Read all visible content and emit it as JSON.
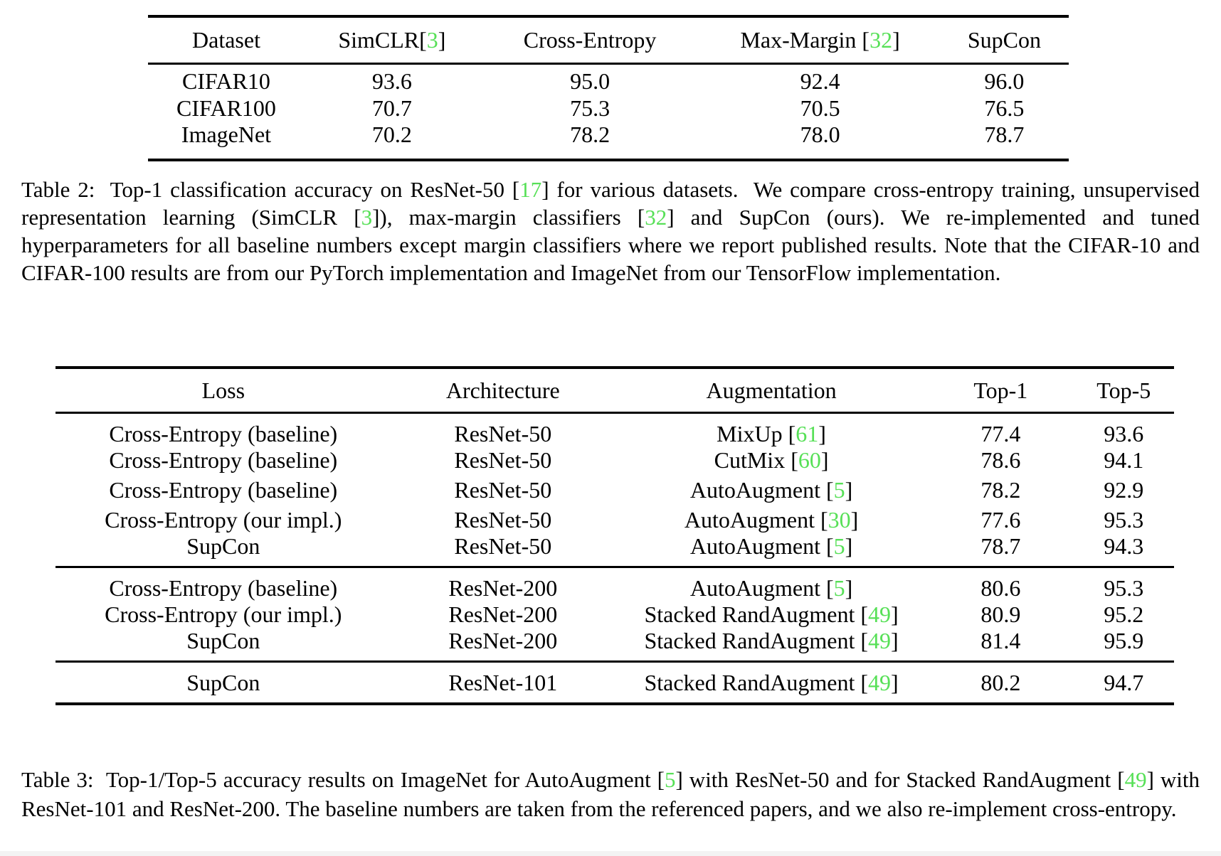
{
  "colors": {
    "cite_green": "#57e057",
    "text": "#000000",
    "background": "#ffffff",
    "rule": "#000000"
  },
  "table2": {
    "headers": [
      {
        "segments": [
          {
            "t": "Dataset"
          }
        ]
      },
      {
        "segments": [
          {
            "t": "SimCLR["
          },
          {
            "cite": "3"
          },
          {
            "t": "]"
          }
        ]
      },
      {
        "segments": [
          {
            "t": "Cross-Entropy"
          }
        ]
      },
      {
        "segments": [
          {
            "t": "Max-Margin ["
          },
          {
            "cite": "32"
          },
          {
            "t": "]"
          }
        ]
      },
      {
        "segments": [
          {
            "t": "SupCon"
          }
        ]
      }
    ],
    "groups": [
      {
        "rows": [
          {
            "cells": [
              {
                "segments": [
                  {
                    "t": "CIFAR10"
                  }
                ]
              },
              {
                "segments": [
                  {
                    "t": "93.6"
                  }
                ]
              },
              {
                "segments": [
                  {
                    "t": "95.0"
                  }
                ]
              },
              {
                "segments": [
                  {
                    "t": "92.4"
                  }
                ]
              },
              {
                "segments": [
                  {
                    "t": "96.0"
                  }
                ],
                "bold": true
              }
            ]
          },
          {
            "cells": [
              {
                "segments": [
                  {
                    "t": "CIFAR100"
                  }
                ]
              },
              {
                "segments": [
                  {
                    "t": "70.7"
                  }
                ]
              },
              {
                "segments": [
                  {
                    "t": "75.3"
                  }
                ]
              },
              {
                "segments": [
                  {
                    "t": "70.5"
                  }
                ]
              },
              {
                "segments": [
                  {
                    "t": "76.5"
                  }
                ],
                "bold": true
              }
            ]
          },
          {
            "cells": [
              {
                "segments": [
                  {
                    "t": "ImageNet"
                  }
                ]
              },
              {
                "segments": [
                  {
                    "t": "70.2"
                  }
                ]
              },
              {
                "segments": [
                  {
                    "t": "78.2"
                  }
                ]
              },
              {
                "segments": [
                  {
                    "t": "78.0"
                  }
                ]
              },
              {
                "segments": [
                  {
                    "t": "78.7"
                  }
                ],
                "bold": true
              }
            ]
          }
        ]
      }
    ]
  },
  "caption2": {
    "segments": [
      {
        "t": "Table 2:  Top-1 classification accuracy on ResNet-50 ["
      },
      {
        "cite": "17"
      },
      {
        "t": "] for various datasets.  We compare cross-entropy training, unsupervised representation learning (SimCLR ["
      },
      {
        "cite": "3"
      },
      {
        "t": "]), max-margin classifiers ["
      },
      {
        "cite": "32"
      },
      {
        "t": "] and SupCon (ours). We re-implemented and tuned hyperparameters for all baseline numbers except margin classifiers where we report published results. Note that the CIFAR-10 and CIFAR-100 results are from our PyTorch implementation and ImageNet from our TensorFlow implementation."
      }
    ]
  },
  "table3": {
    "headers": [
      {
        "segments": [
          {
            "t": "Loss"
          }
        ]
      },
      {
        "segments": [
          {
            "t": "Architecture"
          }
        ]
      },
      {
        "segments": [
          {
            "t": "Augmentation"
          }
        ]
      },
      {
        "segments": [
          {
            "t": "Top-1"
          }
        ]
      },
      {
        "segments": [
          {
            "t": "Top-5"
          }
        ]
      }
    ],
    "groups": [
      {
        "rows": [
          {
            "cells": [
              {
                "segments": [
                  {
                    "t": "Cross-Entropy (baseline)"
                  }
                ]
              },
              {
                "segments": [
                  {
                    "t": "ResNet-50"
                  }
                ]
              },
              {
                "segments": [
                  {
                    "t": "MixUp ["
                  },
                  {
                    "cite": "61"
                  },
                  {
                    "t": "]"
                  }
                ]
              },
              {
                "segments": [
                  {
                    "t": "77.4"
                  }
                ]
              },
              {
                "segments": [
                  {
                    "t": "93.6"
                  }
                ]
              }
            ]
          },
          {
            "cells": [
              {
                "segments": [
                  {
                    "t": "Cross-Entropy (baseline)"
                  }
                ]
              },
              {
                "segments": [
                  {
                    "t": "ResNet-50"
                  }
                ]
              },
              {
                "segments": [
                  {
                    "t": "CutMix ["
                  },
                  {
                    "cite": "60"
                  },
                  {
                    "t": "]"
                  }
                ]
              },
              {
                "segments": [
                  {
                    "t": "78.6"
                  }
                ]
              },
              {
                "segments": [
                  {
                    "t": "94.1"
                  }
                ]
              }
            ]
          },
          {
            "cells": [
              {
                "segments": [
                  {
                    "t": "Cross-Entropy (baseline)"
                  }
                ]
              },
              {
                "segments": [
                  {
                    "t": "ResNet-50"
                  }
                ]
              },
              {
                "segments": [
                  {
                    "t": "AutoAugment ["
                  },
                  {
                    "cite": "5"
                  },
                  {
                    "t": "]"
                  }
                ]
              },
              {
                "segments": [
                  {
                    "t": "78.2"
                  }
                ]
              },
              {
                "segments": [
                  {
                    "t": "92.9"
                  }
                ]
              }
            ]
          },
          {
            "cells": [
              {
                "segments": [
                  {
                    "t": "Cross-Entropy (our impl.)"
                  }
                ]
              },
              {
                "segments": [
                  {
                    "t": "ResNet-50"
                  }
                ]
              },
              {
                "segments": [
                  {
                    "t": "AutoAugment ["
                  },
                  {
                    "cite": "30"
                  },
                  {
                    "t": "]"
                  }
                ]
              },
              {
                "segments": [
                  {
                    "t": "77.6"
                  }
                ]
              },
              {
                "segments": [
                  {
                    "t": "95.3"
                  }
                ]
              }
            ]
          },
          {
            "cells": [
              {
                "segments": [
                  {
                    "t": "SupCon"
                  }
                ]
              },
              {
                "segments": [
                  {
                    "t": "ResNet-50"
                  }
                ]
              },
              {
                "segments": [
                  {
                    "t": "AutoAugment ["
                  },
                  {
                    "cite": "5"
                  },
                  {
                    "t": "]"
                  }
                ]
              },
              {
                "segments": [
                  {
                    "t": "78.7"
                  }
                ],
                "bold": true
              },
              {
                "segments": [
                  {
                    "t": "94.3"
                  }
                ],
                "bold": true
              }
            ]
          }
        ]
      },
      {
        "rows": [
          {
            "cells": [
              {
                "segments": [
                  {
                    "t": "Cross-Entropy (baseline)"
                  }
                ]
              },
              {
                "segments": [
                  {
                    "t": "ResNet-200"
                  }
                ]
              },
              {
                "segments": [
                  {
                    "t": "AutoAugment ["
                  },
                  {
                    "cite": "5"
                  },
                  {
                    "t": "]"
                  }
                ]
              },
              {
                "segments": [
                  {
                    "t": "80.6"
                  }
                ]
              },
              {
                "segments": [
                  {
                    "t": "95.3"
                  }
                ]
              }
            ]
          },
          {
            "cells": [
              {
                "segments": [
                  {
                    "t": "Cross-Entropy (our impl.)"
                  }
                ]
              },
              {
                "segments": [
                  {
                    "t": "ResNet-200"
                  }
                ]
              },
              {
                "segments": [
                  {
                    "t": "Stacked RandAugment ["
                  },
                  {
                    "cite": "49"
                  },
                  {
                    "t": "]"
                  }
                ]
              },
              {
                "segments": [
                  {
                    "t": "80.9"
                  }
                ]
              },
              {
                "segments": [
                  {
                    "t": "95.2"
                  }
                ]
              }
            ]
          },
          {
            "cells": [
              {
                "segments": [
                  {
                    "t": "SupCon"
                  }
                ]
              },
              {
                "segments": [
                  {
                    "t": "ResNet-200"
                  }
                ]
              },
              {
                "segments": [
                  {
                    "t": "Stacked RandAugment ["
                  },
                  {
                    "cite": "49"
                  },
                  {
                    "t": "]"
                  }
                ]
              },
              {
                "segments": [
                  {
                    "t": "81.4"
                  }
                ],
                "bold": true
              },
              {
                "segments": [
                  {
                    "t": "95.9"
                  }
                ],
                "bold": true
              }
            ]
          }
        ]
      },
      {
        "rows": [
          {
            "cells": [
              {
                "segments": [
                  {
                    "t": "SupCon"
                  }
                ]
              },
              {
                "segments": [
                  {
                    "t": "ResNet-101"
                  }
                ]
              },
              {
                "segments": [
                  {
                    "t": "Stacked RandAugment ["
                  },
                  {
                    "cite": "49"
                  },
                  {
                    "t": "]"
                  }
                ]
              },
              {
                "segments": [
                  {
                    "t": "80.2"
                  }
                ]
              },
              {
                "segments": [
                  {
                    "t": "94.7"
                  }
                ]
              }
            ]
          }
        ]
      }
    ]
  },
  "caption3": {
    "segments": [
      {
        "t": "Table 3:  Top-1/Top-5 accuracy results on ImageNet for AutoAugment ["
      },
      {
        "cite": "5"
      },
      {
        "t": "] with ResNet-50 and for Stacked RandAugment ["
      },
      {
        "cite": "49"
      },
      {
        "t": "] with ResNet-101 and ResNet-200. The baseline numbers are taken from the referenced papers, and we also re-implement cross-entropy."
      }
    ]
  }
}
